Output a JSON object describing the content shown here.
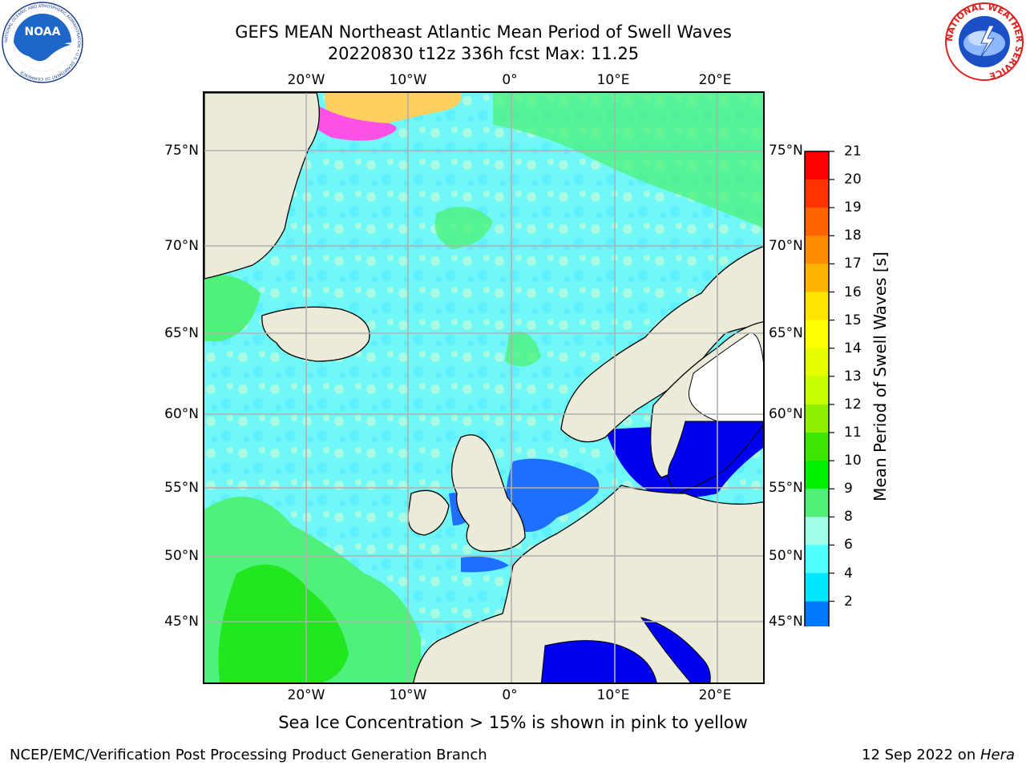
{
  "title": {
    "line1": "GEFS MEAN Northeast Atlantic Mean Period of Swell Waves",
    "line2": "20220830 t12z 336h fcst   Max: 11.25"
  },
  "logos": {
    "noaa": {
      "text": "NOAA",
      "ring_text": "NATIONAL OCEANIC AND ATMOSPHERIC ADMINISTRATION • U.S. DEPARTMENT OF COMMERCE",
      "icon": "noaa-logo"
    },
    "nws": {
      "ring_text": "NATIONAL WEATHER SERVICE",
      "icon": "nws-logo"
    }
  },
  "map": {
    "lon_labels": [
      "20°W",
      "10°W",
      "0°",
      "10°E",
      "20°E"
    ],
    "lat_labels": [
      "75°N",
      "70°N",
      "65°N",
      "60°N",
      "55°N",
      "50°N",
      "45°N"
    ],
    "colors": {
      "land": "#ecebd9",
      "gridline": "#b0b0b0",
      "coast": "#000000",
      "ice_pink": "#ff50e8",
      "ice_yellow": "#ffd060"
    }
  },
  "colorbar": {
    "label": "Mean Period of Swell Waves [s]",
    "ticks": [
      "21",
      "20",
      "19",
      "18",
      "17",
      "16",
      "15",
      "14",
      "13",
      "12",
      "11",
      "10",
      "9",
      "8",
      "6",
      "4",
      "2"
    ],
    "colors": [
      "#ff0000",
      "#ff3300",
      "#ff6400",
      "#ff8c00",
      "#ffb400",
      "#ffe600",
      "#ffff00",
      "#e6ff00",
      "#c8ff00",
      "#8cf000",
      "#3ce600",
      "#00f000",
      "#50f078",
      "#a0ffe6",
      "#50ffff",
      "#00e6ff",
      "#0078ff",
      "#0000ff"
    ]
  },
  "caption": "Sea Ice Concentration > 15% is shown in pink to yellow",
  "footer": {
    "left": "NCEP/EMC/Verification Post Processing Product Generation Branch",
    "right_date": "12 Sep 2022 on ",
    "right_host": "Hera"
  }
}
